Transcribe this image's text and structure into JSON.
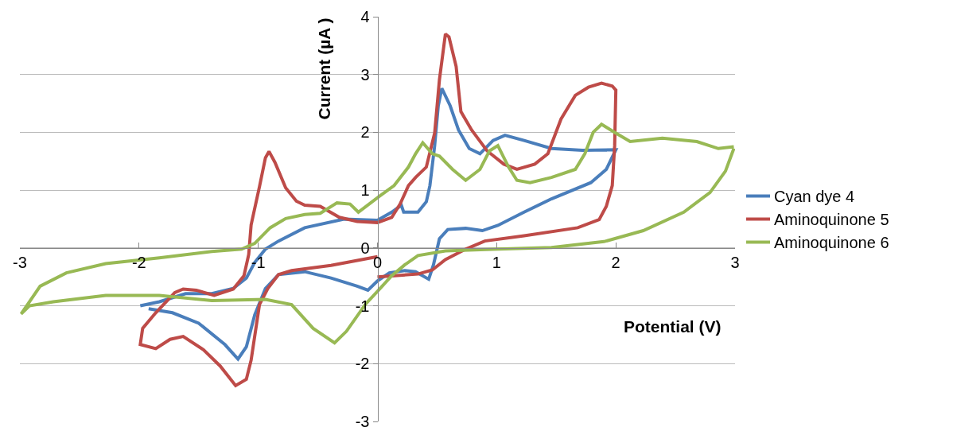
{
  "chart_data": {
    "type": "line",
    "xlabel": "Potential (V)",
    "ylabel": "Current (µA )",
    "xlim": [
      -3,
      3
    ],
    "xticks": [
      -3,
      -2,
      -1,
      0,
      1,
      2,
      3
    ],
    "ylim": [
      -3,
      4
    ],
    "yticks": [
      -3,
      -2,
      -1,
      0,
      1,
      2,
      3,
      4
    ],
    "grid": "y",
    "legend": "right",
    "marker": "none",
    "line_style": "solid",
    "series": [
      {
        "name": "Cyan dye 4",
        "color": "#4a7ebb",
        "x": [
          -1.92,
          -1.72,
          -1.5,
          -1.28,
          -1.17,
          -1.1,
          -1.03,
          -0.94,
          -0.83,
          -0.61,
          -0.39,
          -0.17,
          -0.08,
          0.0,
          0.1,
          0.23,
          0.32,
          0.43,
          0.47,
          0.52,
          0.59,
          0.74,
          0.88,
          1.01,
          1.23,
          1.46,
          1.79,
          1.92,
          2.0,
          1.72,
          1.46,
          1.23,
          1.07,
          0.97,
          0.86,
          0.77,
          0.68,
          0.61,
          0.54,
          0.51,
          0.48,
          0.44,
          0.41,
          0.34,
          0.22,
          0.2,
          0.12,
          0.0,
          -0.28,
          -0.61,
          -0.83,
          -0.94,
          -1.03,
          -1.1,
          -1.21,
          -1.39,
          -1.61,
          -1.83,
          -1.99
        ],
        "values": [
          -1.05,
          -1.12,
          -1.3,
          -1.67,
          -1.92,
          -1.71,
          -1.16,
          -0.7,
          -0.46,
          -0.41,
          -0.52,
          -0.66,
          -0.73,
          -0.57,
          -0.43,
          -0.39,
          -0.41,
          -0.54,
          -0.29,
          0.16,
          0.32,
          0.34,
          0.3,
          0.39,
          0.62,
          0.85,
          1.13,
          1.36,
          1.7,
          1.69,
          1.72,
          1.86,
          1.95,
          1.86,
          1.63,
          1.72,
          2.04,
          2.46,
          2.76,
          2.46,
          1.77,
          1.08,
          0.8,
          0.62,
          0.62,
          0.74,
          0.62,
          0.48,
          0.5,
          0.35,
          0.12,
          -0.02,
          -0.25,
          -0.52,
          -0.7,
          -0.79,
          -0.79,
          -0.93,
          -1.0
        ]
      },
      {
        "name": "Aminoquinone 5",
        "color": "#be4b48",
        "x": [
          0.0,
          0.34,
          0.46,
          0.57,
          0.74,
          0.9,
          1.23,
          1.68,
          1.86,
          1.92,
          1.97,
          1.99,
          2.0,
          1.97,
          1.88,
          1.77,
          1.66,
          1.54,
          1.43,
          1.32,
          1.17,
          1.06,
          0.92,
          0.79,
          0.7,
          0.66,
          0.6,
          0.57,
          0.52,
          0.48,
          0.41,
          0.32,
          0.26,
          0.19,
          0.12,
          0.0,
          -0.17,
          -0.32,
          -0.48,
          -0.61,
          -0.68,
          -0.77,
          -0.86,
          -0.91,
          -0.94,
          -0.99,
          -1.06,
          -1.08,
          -1.12,
          -1.21,
          -1.37,
          -1.52,
          -1.63,
          -1.7,
          -1.86,
          -1.97,
          -1.99,
          -1.86,
          -1.74,
          -1.63,
          -1.46,
          -1.32,
          -1.19,
          -1.1,
          -1.06,
          -0.99,
          -0.92,
          -0.83,
          -0.72,
          -0.39,
          0.0
        ],
        "values": [
          -0.5,
          -0.45,
          -0.38,
          -0.2,
          -0.02,
          0.12,
          0.21,
          0.35,
          0.49,
          0.72,
          1.08,
          1.77,
          2.73,
          2.8,
          2.85,
          2.78,
          2.64,
          2.23,
          1.63,
          1.45,
          1.36,
          1.45,
          1.68,
          2.04,
          2.36,
          3.14,
          3.65,
          3.7,
          2.91,
          1.99,
          1.4,
          1.22,
          1.08,
          0.76,
          0.53,
          0.44,
          0.46,
          0.53,
          0.72,
          0.74,
          0.81,
          1.04,
          1.48,
          1.67,
          1.56,
          1.06,
          0.4,
          -0.11,
          -0.48,
          -0.71,
          -0.82,
          -0.73,
          -0.71,
          -0.77,
          -1.12,
          -1.39,
          -1.67,
          -1.74,
          -1.58,
          -1.53,
          -1.76,
          -2.04,
          -2.38,
          -2.27,
          -1.94,
          -0.98,
          -0.7,
          -0.46,
          -0.39,
          -0.3,
          -0.15
        ]
      },
      {
        "name": "Aminoquinone 6",
        "color": "#98b954",
        "x": [
          2.99,
          2.86,
          2.68,
          2.39,
          2.12,
          1.99,
          1.88,
          1.81,
          1.74,
          1.66,
          1.46,
          1.28,
          1.17,
          1.1,
          1.01,
          0.94,
          0.86,
          0.74,
          0.63,
          0.52,
          0.46,
          0.38,
          0.32,
          0.26,
          0.14,
          0.02,
          -0.16,
          -0.23,
          -0.34,
          -0.48,
          -0.61,
          -0.77,
          -0.9,
          -1.03,
          -1.14,
          -1.39,
          -1.83,
          -2.28,
          -2.61,
          -2.83,
          -2.99,
          -2.92,
          -2.72,
          -2.28,
          -1.83,
          -1.39,
          -0.94,
          -0.72,
          -0.54,
          -0.36,
          -0.26,
          -0.1,
          0.0,
          0.12,
          0.23,
          0.34,
          0.57,
          1.01,
          1.46,
          1.9,
          2.23,
          2.57,
          2.79,
          2.92,
          2.99
        ],
        "values": [
          1.75,
          1.72,
          1.84,
          1.9,
          1.84,
          2.0,
          2.14,
          2.0,
          1.63,
          1.36,
          1.22,
          1.13,
          1.17,
          1.4,
          1.77,
          1.68,
          1.36,
          1.17,
          1.36,
          1.59,
          1.63,
          1.82,
          1.63,
          1.4,
          1.08,
          0.9,
          0.62,
          0.76,
          0.78,
          0.6,
          0.58,
          0.51,
          0.35,
          0.08,
          -0.02,
          -0.06,
          -0.17,
          -0.27,
          -0.43,
          -0.66,
          -1.14,
          -1.0,
          -0.93,
          -0.82,
          -0.82,
          -0.91,
          -0.89,
          -0.98,
          -1.39,
          -1.64,
          -1.44,
          -0.97,
          -0.75,
          -0.48,
          -0.29,
          -0.13,
          -0.05,
          -0.02,
          0.01,
          0.11,
          0.3,
          0.62,
          0.96,
          1.33,
          1.72
        ]
      }
    ]
  }
}
